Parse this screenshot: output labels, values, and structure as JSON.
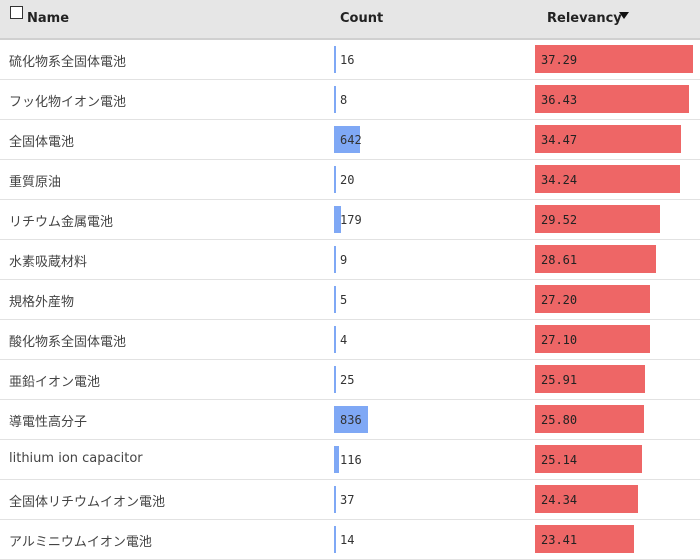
{
  "header": {
    "name_label": "Name",
    "count_label": "Count",
    "relevancy_label": "Relevancy"
  },
  "rows": [
    {
      "name": "硫化物系全固体電池",
      "count": "16",
      "relevancy": "37.29"
    },
    {
      "name": "フッ化物イオン電池",
      "count": "8",
      "relevancy": "36.43"
    },
    {
      "name": "全固体電池",
      "count": "642",
      "relevancy": "34.47"
    },
    {
      "name": "重質原油",
      "count": "20",
      "relevancy": "34.24"
    },
    {
      "name": "リチウム金属電池",
      "count": "179",
      "relevancy": "29.52"
    },
    {
      "name": "水素吸蔵材料",
      "count": "9",
      "relevancy": "28.61"
    },
    {
      "name": "規格外産物",
      "count": "5",
      "relevancy": "27.20"
    },
    {
      "name": "酸化物系全固体電池",
      "count": "4",
      "relevancy": "27.10"
    },
    {
      "name": "亜鉛イオン電池",
      "count": "25",
      "relevancy": "25.91"
    },
    {
      "name": "導電性高分子",
      "count": "836",
      "relevancy": "25.80"
    },
    {
      "name": "lithium ion capacitor",
      "count": "116",
      "relevancy": "25.14"
    },
    {
      "name": "全固体リチウムイオン電池",
      "count": "37",
      "relevancy": "24.34"
    },
    {
      "name": "アルミニウムイオン電池",
      "count": "14",
      "relevancy": "23.41"
    }
  ],
  "colors": {
    "count_bar": "#7fa8f5",
    "relevancy_bar": "#ee6666",
    "header_bg": "#e6e6e6"
  }
}
